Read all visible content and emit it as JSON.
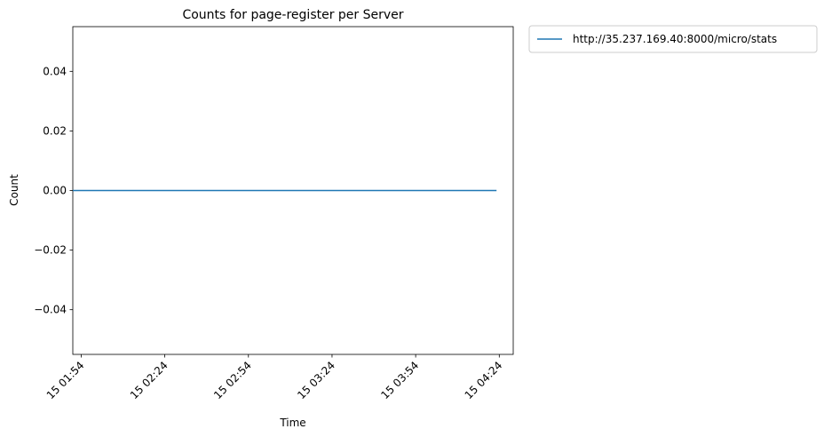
{
  "chart_data": {
    "type": "line",
    "title": "Counts for page-register per Server",
    "xlabel": "Time",
    "ylabel": "Count",
    "x_ticks": [
      "15 01:54",
      "15 02:24",
      "15 02:54",
      "15 03:24",
      "15 03:54",
      "15 04:24"
    ],
    "xlim": [
      "15 01:51",
      "15 04:29"
    ],
    "ylim": [
      -0.055,
      0.055
    ],
    "y_ticks": [
      0.04,
      0.02,
      0.0,
      -0.02,
      -0.04
    ],
    "y_tick_labels": [
      "0.04",
      "0.02",
      "0.00",
      "−0.02",
      "−0.04"
    ],
    "grid": false,
    "legend_position": "outside-top-right",
    "series": [
      {
        "name": "http://35.237.169.40:8000/micro/stats",
        "color": "#1f77b4",
        "x": [
          "15 01:51",
          "15 04:23"
        ],
        "y": [
          0,
          0
        ]
      }
    ]
  }
}
